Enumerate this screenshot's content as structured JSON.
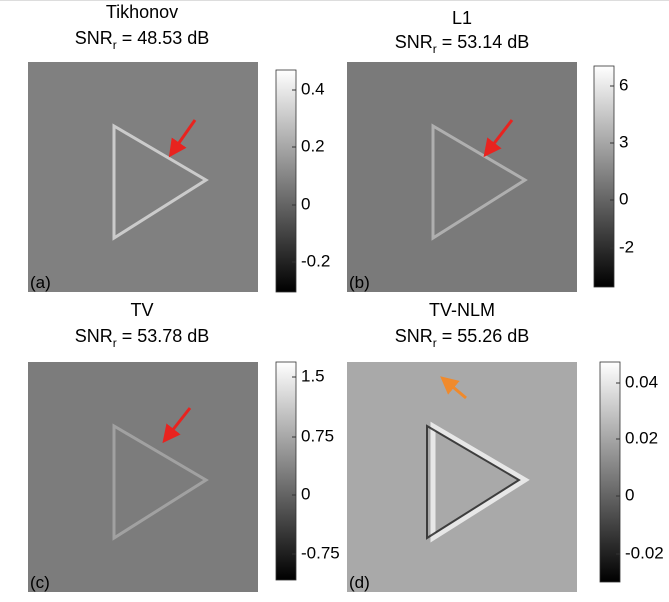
{
  "panels": [
    {
      "title": "Tikhonov",
      "snr_main": "SNR",
      "snr_sub": "r",
      "snr_value": " = 48.53 dB",
      "label": "(a)",
      "colorbar_ticks": [
        "0.4",
        "0.2",
        "0",
        "-0.2"
      ]
    },
    {
      "title": "L1",
      "snr_main": "SNR",
      "snr_sub": "r",
      "snr_value": " = 53.14 dB",
      "label": "(b)",
      "colorbar_ticks": [
        "6",
        "3",
        "0",
        "-2"
      ]
    },
    {
      "title": "TV",
      "snr_main": "SNR",
      "snr_sub": "r",
      "snr_value": " = 53.78 dB",
      "label": "(c)",
      "colorbar_ticks": [
        "1.5",
        "0.75",
        "0",
        "-0.75"
      ]
    },
    {
      "title": "TV-NLM",
      "snr_main": "SNR",
      "snr_sub": "r",
      "snr_value": " = 55.26 dB",
      "label": "(d)",
      "colorbar_ticks": [
        "0.04",
        "0.02",
        "0",
        "-0.02"
      ]
    }
  ]
}
